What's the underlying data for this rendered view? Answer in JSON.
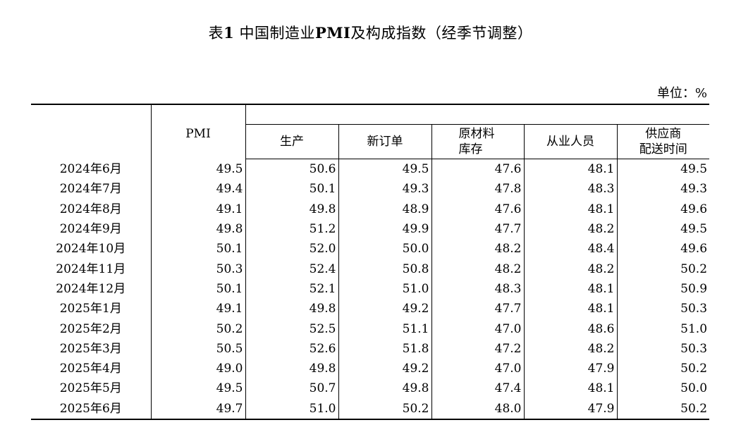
{
  "title_prefix": "表",
  "title_bold1": "1",
  "title_mid": " 中国制造业",
  "title_bold2": "PMI",
  "title_suffix": "及构成指数（经季节调整）",
  "unit": "单位：%",
  "headers": {
    "pmi": "PMI",
    "production": "生产",
    "new_orders": "新订单",
    "raw_materials_line1": "原材料",
    "raw_materials_line2": "库存",
    "employment": "从业人员",
    "supplier_line1": "供应商",
    "supplier_line2": "配送时间"
  },
  "rows": [
    {
      "month": "2024年6月",
      "values": [
        "49.5",
        "50.6",
        "49.5",
        "47.6",
        "48.1",
        "49.5"
      ]
    },
    {
      "month": "2024年7月",
      "values": [
        "49.4",
        "50.1",
        "49.3",
        "47.8",
        "48.3",
        "49.3"
      ]
    },
    {
      "month": "2024年8月",
      "values": [
        "49.1",
        "49.8",
        "48.9",
        "47.6",
        "48.1",
        "49.6"
      ]
    },
    {
      "month": "2024年9月",
      "values": [
        "49.8",
        "51.2",
        "49.9",
        "47.7",
        "48.2",
        "49.5"
      ]
    },
    {
      "month": "2024年10月",
      "values": [
        "50.1",
        "52.0",
        "50.0",
        "48.2",
        "48.4",
        "49.6"
      ]
    },
    {
      "month": "2024年11月",
      "values": [
        "50.3",
        "52.4",
        "50.8",
        "48.2",
        "48.2",
        "50.2"
      ]
    },
    {
      "month": "2024年12月",
      "values": [
        "50.1",
        "52.1",
        "51.0",
        "48.3",
        "48.1",
        "50.9"
      ]
    },
    {
      "month": "2025年1月",
      "values": [
        "49.1",
        "49.8",
        "49.2",
        "47.7",
        "48.1",
        "50.3"
      ]
    },
    {
      "month": "2025年2月",
      "values": [
        "50.2",
        "52.5",
        "51.1",
        "47.0",
        "48.6",
        "51.0"
      ]
    },
    {
      "month": "2025年3月",
      "values": [
        "50.5",
        "52.6",
        "51.8",
        "47.2",
        "48.2",
        "50.3"
      ]
    },
    {
      "month": "2025年4月",
      "values": [
        "49.0",
        "49.8",
        "49.2",
        "47.0",
        "47.9",
        "50.2"
      ]
    },
    {
      "month": "2025年5月",
      "values": [
        "49.5",
        "50.7",
        "49.8",
        "47.4",
        "48.1",
        "50.0"
      ]
    },
    {
      "month": "2025年6月",
      "values": [
        "49.7",
        "51.0",
        "50.2",
        "48.0",
        "47.9",
        "50.2"
      ]
    }
  ]
}
